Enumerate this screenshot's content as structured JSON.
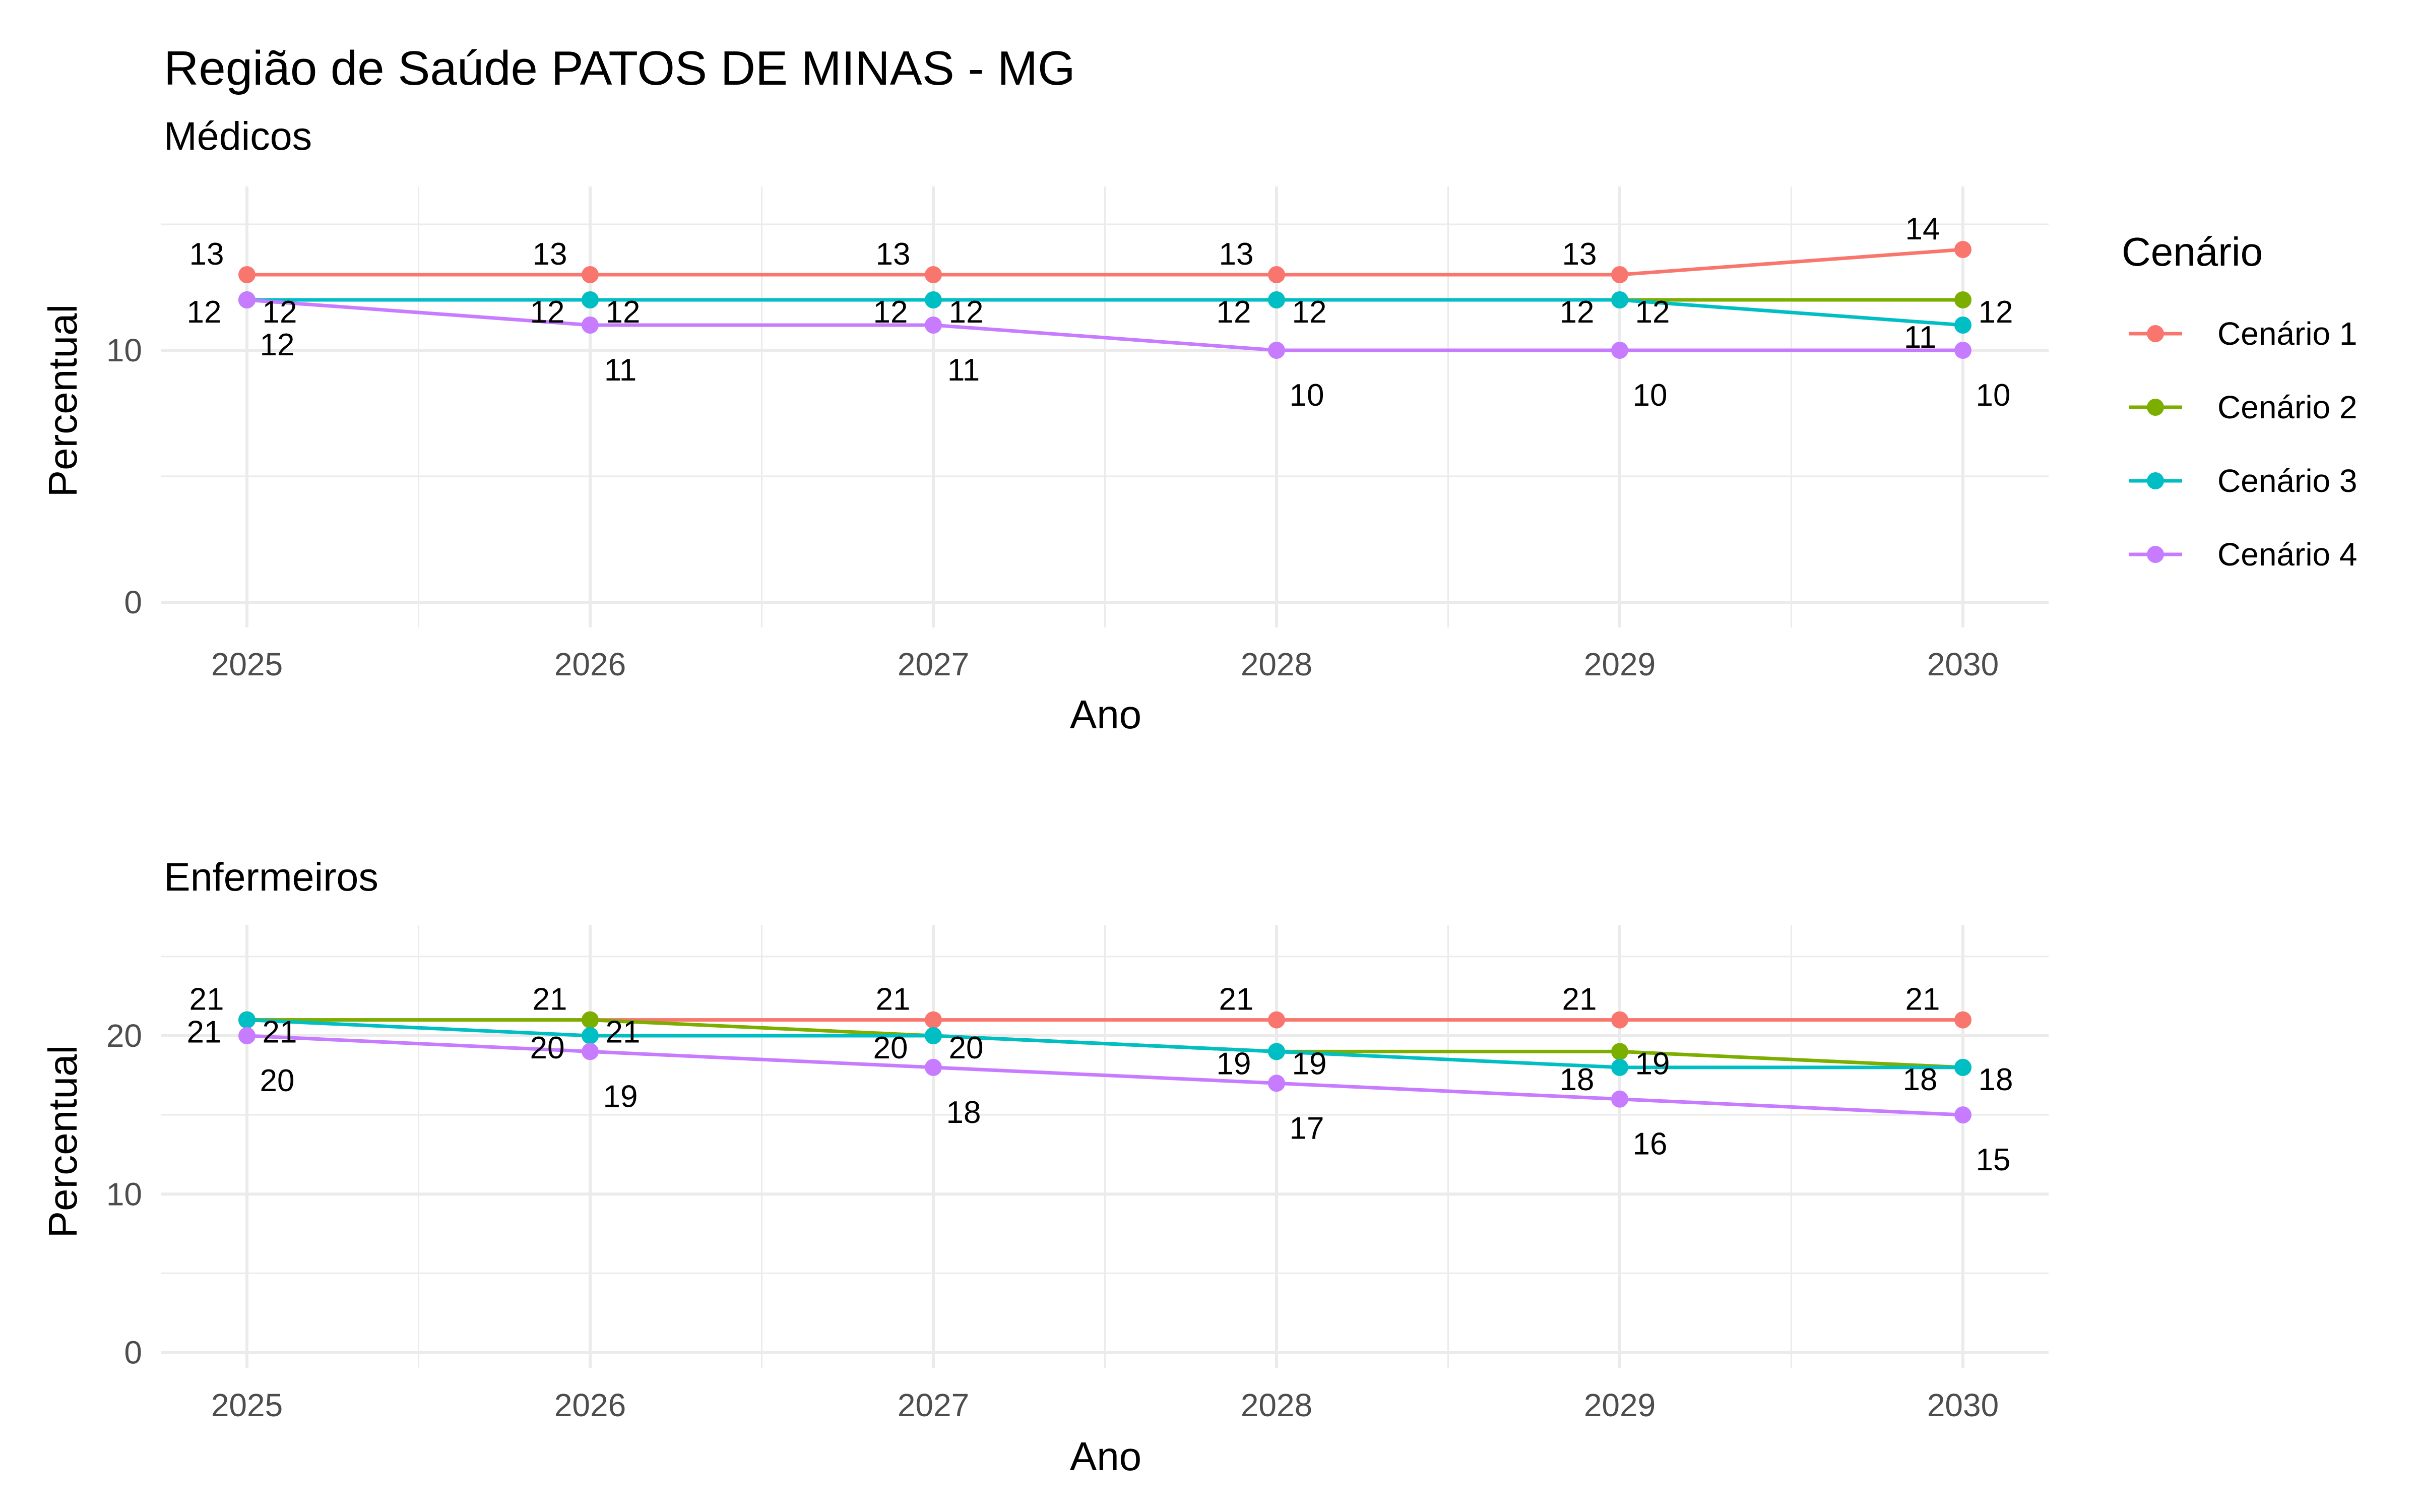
{
  "title": "Região de Saúde PATOS DE MINAS - MG",
  "legend": {
    "title": "Cenário",
    "position": "right"
  },
  "colors": {
    "Cenário 1": "#F8766D",
    "Cenário 2": "#7CAE00",
    "Cenário 3": "#00BFC4",
    "Cenário 4": "#C77CFF"
  },
  "chart_data": [
    {
      "type": "line",
      "subtitle": "Médicos",
      "xlabel": "Ano",
      "ylabel": "Percentual",
      "x": [
        "2025",
        "2026",
        "2027",
        "2028",
        "2029",
        "2030"
      ],
      "ylim": [
        -1,
        16.5
      ],
      "yticks": [
        "0",
        "10"
      ],
      "yticks_values": [
        0,
        10
      ],
      "grid": true,
      "series": [
        {
          "name": "Cenário 1",
          "values": [
            13,
            13,
            13,
            13,
            13,
            14
          ]
        },
        {
          "name": "Cenário 2",
          "values": [
            12,
            12,
            12,
            12,
            12,
            12
          ]
        },
        {
          "name": "Cenário 3",
          "values": [
            12,
            12,
            12,
            12,
            12,
            11
          ]
        },
        {
          "name": "Cenário 4",
          "values": [
            12,
            11,
            11,
            10,
            10,
            10
          ]
        }
      ]
    },
    {
      "type": "line",
      "subtitle": "Enfermeiros",
      "xlabel": "Ano",
      "ylabel": "Percentual",
      "x": [
        "2025",
        "2026",
        "2027",
        "2028",
        "2029",
        "2030"
      ],
      "ylim": [
        -1,
        27
      ],
      "yticks": [
        "0",
        "10",
        "20"
      ],
      "yticks_values": [
        0,
        10,
        20
      ],
      "grid": true,
      "series": [
        {
          "name": "Cenário 1",
          "values": [
            21,
            21,
            21,
            21,
            21,
            21
          ]
        },
        {
          "name": "Cenário 2",
          "values": [
            21,
            21,
            20,
            19,
            19,
            18
          ]
        },
        {
          "name": "Cenário 3",
          "values": [
            21,
            20,
            20,
            19,
            18,
            18
          ]
        },
        {
          "name": "Cenário 4",
          "values": [
            20,
            19,
            18,
            17,
            16,
            15
          ]
        }
      ]
    }
  ]
}
